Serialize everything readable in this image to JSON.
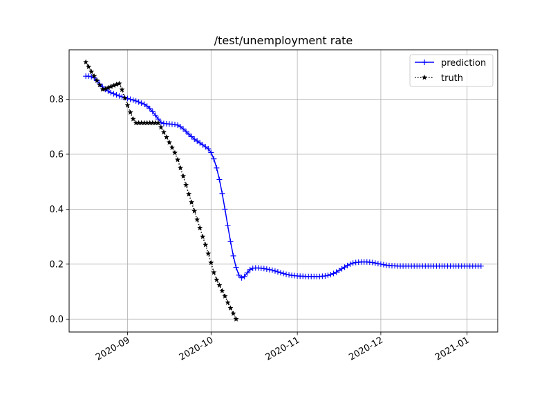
{
  "chart_data": {
    "type": "line",
    "title": "/test/unemployment rate",
    "xlabel": "",
    "ylabel": "",
    "x_type": "date",
    "xlim": [
      "2020-08-11",
      "2021-01-12"
    ],
    "ylim": [
      -0.047,
      0.98
    ],
    "x_ticks": [
      "2020-09-01",
      "2020-10-01",
      "2020-11-01",
      "2020-12-01",
      "2021-01-01"
    ],
    "x_tick_labels": [
      "2020-09",
      "2020-10",
      "2020-11",
      "2020-12",
      "2021-01"
    ],
    "y_ticks": [
      0.0,
      0.2,
      0.4,
      0.6,
      0.8
    ],
    "y_tick_labels": [
      "0.0",
      "0.2",
      "0.4",
      "0.6",
      "0.8"
    ],
    "grid": true,
    "legend_position": "top-right",
    "series": [
      {
        "name": "prediction",
        "color": "#0000ff",
        "line_style": "solid",
        "marker": "+",
        "points": [
          [
            "2020-08-17",
            0.884
          ],
          [
            "2020-08-18",
            0.884
          ],
          [
            "2020-08-19",
            0.882
          ],
          [
            "2020-08-20",
            0.878
          ],
          [
            "2020-08-21",
            0.868
          ],
          [
            "2020-08-22",
            0.856
          ],
          [
            "2020-08-23",
            0.845
          ],
          [
            "2020-08-24",
            0.836
          ],
          [
            "2020-08-25",
            0.83
          ],
          [
            "2020-08-26",
            0.824
          ],
          [
            "2020-08-27",
            0.82
          ],
          [
            "2020-08-28",
            0.816
          ],
          [
            "2020-08-29",
            0.812
          ],
          [
            "2020-08-30",
            0.809
          ],
          [
            "2020-08-31",
            0.806
          ],
          [
            "2020-09-01",
            0.803
          ],
          [
            "2020-09-02",
            0.8
          ],
          [
            "2020-09-03",
            0.797
          ],
          [
            "2020-09-04",
            0.794
          ],
          [
            "2020-09-05",
            0.79
          ],
          [
            "2020-09-06",
            0.786
          ],
          [
            "2020-09-07",
            0.782
          ],
          [
            "2020-09-08",
            0.775
          ],
          [
            "2020-09-09",
            0.766
          ],
          [
            "2020-09-10",
            0.755
          ],
          [
            "2020-09-11",
            0.742
          ],
          [
            "2020-09-12",
            0.728
          ],
          [
            "2020-09-13",
            0.716
          ],
          [
            "2020-09-14",
            0.712
          ],
          [
            "2020-09-15",
            0.711
          ],
          [
            "2020-09-16",
            0.71
          ],
          [
            "2020-09-17",
            0.709
          ],
          [
            "2020-09-18",
            0.708
          ],
          [
            "2020-09-19",
            0.706
          ],
          [
            "2020-09-20",
            0.7
          ],
          [
            "2020-09-21",
            0.692
          ],
          [
            "2020-09-22",
            0.683
          ],
          [
            "2020-09-23",
            0.673
          ],
          [
            "2020-09-24",
            0.664
          ],
          [
            "2020-09-25",
            0.655
          ],
          [
            "2020-09-26",
            0.648
          ],
          [
            "2020-09-27",
            0.641
          ],
          [
            "2020-09-28",
            0.634
          ],
          [
            "2020-09-29",
            0.627
          ],
          [
            "2020-09-30",
            0.62
          ],
          [
            "2020-10-01",
            0.606
          ],
          [
            "2020-10-02",
            0.583
          ],
          [
            "2020-10-03",
            0.55
          ],
          [
            "2020-10-04",
            0.508
          ],
          [
            "2020-10-05",
            0.457
          ],
          [
            "2020-10-06",
            0.4
          ],
          [
            "2020-10-07",
            0.34
          ],
          [
            "2020-10-08",
            0.282
          ],
          [
            "2020-10-09",
            0.23
          ],
          [
            "2020-10-10",
            0.188
          ],
          [
            "2020-10-11",
            0.16
          ],
          [
            "2020-10-12",
            0.15
          ],
          [
            "2020-10-13",
            0.155
          ],
          [
            "2020-10-14",
            0.168
          ],
          [
            "2020-10-15",
            0.18
          ],
          [
            "2020-10-16",
            0.185
          ],
          [
            "2020-10-17",
            0.186
          ],
          [
            "2020-10-18",
            0.186
          ],
          [
            "2020-10-19",
            0.185
          ],
          [
            "2020-10-20",
            0.184
          ],
          [
            "2020-10-21",
            0.182
          ],
          [
            "2020-10-22",
            0.18
          ],
          [
            "2020-10-23",
            0.178
          ],
          [
            "2020-10-24",
            0.175
          ],
          [
            "2020-10-25",
            0.172
          ],
          [
            "2020-10-26",
            0.169
          ],
          [
            "2020-10-27",
            0.166
          ],
          [
            "2020-10-28",
            0.163
          ],
          [
            "2020-10-29",
            0.161
          ],
          [
            "2020-10-30",
            0.159
          ],
          [
            "2020-10-31",
            0.158
          ],
          [
            "2020-11-01",
            0.157
          ],
          [
            "2020-11-02",
            0.156
          ],
          [
            "2020-11-03",
            0.156
          ],
          [
            "2020-11-04",
            0.155
          ],
          [
            "2020-11-05",
            0.155
          ],
          [
            "2020-11-06",
            0.155
          ],
          [
            "2020-11-07",
            0.155
          ],
          [
            "2020-11-08",
            0.155
          ],
          [
            "2020-11-09",
            0.155
          ],
          [
            "2020-11-10",
            0.156
          ],
          [
            "2020-11-11",
            0.157
          ],
          [
            "2020-11-12",
            0.159
          ],
          [
            "2020-11-13",
            0.162
          ],
          [
            "2020-11-14",
            0.166
          ],
          [
            "2020-11-15",
            0.171
          ],
          [
            "2020-11-16",
            0.177
          ],
          [
            "2020-11-17",
            0.183
          ],
          [
            "2020-11-18",
            0.189
          ],
          [
            "2020-11-19",
            0.195
          ],
          [
            "2020-11-20",
            0.2
          ],
          [
            "2020-11-21",
            0.204
          ],
          [
            "2020-11-22",
            0.206
          ],
          [
            "2020-11-23",
            0.207
          ],
          [
            "2020-11-24",
            0.208
          ],
          [
            "2020-11-25",
            0.208
          ],
          [
            "2020-11-26",
            0.208
          ],
          [
            "2020-11-27",
            0.207
          ],
          [
            "2020-11-28",
            0.206
          ],
          [
            "2020-11-29",
            0.204
          ],
          [
            "2020-11-30",
            0.202
          ],
          [
            "2020-12-01",
            0.2
          ],
          [
            "2020-12-02",
            0.198
          ],
          [
            "2020-12-03",
            0.196
          ],
          [
            "2020-12-04",
            0.195
          ],
          [
            "2020-12-05",
            0.194
          ],
          [
            "2020-12-06",
            0.194
          ],
          [
            "2020-12-07",
            0.193
          ],
          [
            "2020-12-08",
            0.193
          ],
          [
            "2020-12-09",
            0.193
          ],
          [
            "2020-12-10",
            0.193
          ],
          [
            "2020-12-11",
            0.193
          ],
          [
            "2020-12-12",
            0.193
          ],
          [
            "2020-12-13",
            0.193
          ],
          [
            "2020-12-14",
            0.193
          ],
          [
            "2020-12-15",
            0.193
          ],
          [
            "2020-12-16",
            0.193
          ],
          [
            "2020-12-17",
            0.193
          ],
          [
            "2020-12-18",
            0.193
          ],
          [
            "2020-12-19",
            0.193
          ],
          [
            "2020-12-20",
            0.193
          ],
          [
            "2020-12-21",
            0.193
          ],
          [
            "2020-12-22",
            0.193
          ],
          [
            "2020-12-23",
            0.193
          ],
          [
            "2020-12-24",
            0.193
          ],
          [
            "2020-12-25",
            0.193
          ],
          [
            "2020-12-26",
            0.193
          ],
          [
            "2020-12-27",
            0.193
          ],
          [
            "2020-12-28",
            0.193
          ],
          [
            "2020-12-29",
            0.193
          ],
          [
            "2020-12-30",
            0.193
          ],
          [
            "2020-12-31",
            0.193
          ],
          [
            "2021-01-01",
            0.193
          ],
          [
            "2021-01-02",
            0.193
          ],
          [
            "2021-01-03",
            0.193
          ],
          [
            "2021-01-04",
            0.193
          ],
          [
            "2021-01-05",
            0.193
          ],
          [
            "2021-01-06",
            0.193
          ]
        ]
      },
      {
        "name": "truth",
        "color": "#000000",
        "line_style": "dotted",
        "marker": "*",
        "points": [
          [
            "2020-08-17",
            0.935
          ],
          [
            "2020-08-18",
            0.918
          ],
          [
            "2020-08-19",
            0.9
          ],
          [
            "2020-08-20",
            0.884
          ],
          [
            "2020-08-21",
            0.868
          ],
          [
            "2020-08-22",
            0.852
          ],
          [
            "2020-08-23",
            0.836
          ],
          [
            "2020-08-24",
            0.838
          ],
          [
            "2020-08-25",
            0.842
          ],
          [
            "2020-08-26",
            0.846
          ],
          [
            "2020-08-27",
            0.85
          ],
          [
            "2020-08-28",
            0.854
          ],
          [
            "2020-08-29",
            0.857
          ],
          [
            "2020-08-30",
            0.835
          ],
          [
            "2020-08-31",
            0.805
          ],
          [
            "2020-09-01",
            0.778
          ],
          [
            "2020-09-02",
            0.752
          ],
          [
            "2020-09-03",
            0.728
          ],
          [
            "2020-09-04",
            0.714
          ],
          [
            "2020-09-05",
            0.714
          ],
          [
            "2020-09-06",
            0.714
          ],
          [
            "2020-09-07",
            0.714
          ],
          [
            "2020-09-08",
            0.714
          ],
          [
            "2020-09-09",
            0.714
          ],
          [
            "2020-09-10",
            0.714
          ],
          [
            "2020-09-11",
            0.714
          ],
          [
            "2020-09-12",
            0.714
          ],
          [
            "2020-09-13",
            0.698
          ],
          [
            "2020-09-14",
            0.68
          ],
          [
            "2020-09-15",
            0.662
          ],
          [
            "2020-09-16",
            0.643
          ],
          [
            "2020-09-17",
            0.624
          ],
          [
            "2020-09-18",
            0.605
          ],
          [
            "2020-09-19",
            0.58
          ],
          [
            "2020-09-20",
            0.55
          ],
          [
            "2020-09-21",
            0.52
          ],
          [
            "2020-09-22",
            0.488
          ],
          [
            "2020-09-23",
            0.455
          ],
          [
            "2020-09-24",
            0.425
          ],
          [
            "2020-09-25",
            0.393
          ],
          [
            "2020-09-26",
            0.362
          ],
          [
            "2020-09-27",
            0.332
          ],
          [
            "2020-09-28",
            0.3
          ],
          [
            "2020-09-29",
            0.27
          ],
          [
            "2020-09-30",
            0.238
          ],
          [
            "2020-10-01",
            0.205
          ],
          [
            "2020-10-02",
            0.17
          ],
          [
            "2020-10-03",
            0.143
          ],
          [
            "2020-10-04",
            0.123
          ],
          [
            "2020-10-05",
            0.103
          ],
          [
            "2020-10-06",
            0.083
          ],
          [
            "2020-10-07",
            0.06
          ],
          [
            "2020-10-08",
            0.04
          ],
          [
            "2020-10-09",
            0.02
          ],
          [
            "2020-10-10",
            0.0
          ]
        ]
      }
    ]
  }
}
